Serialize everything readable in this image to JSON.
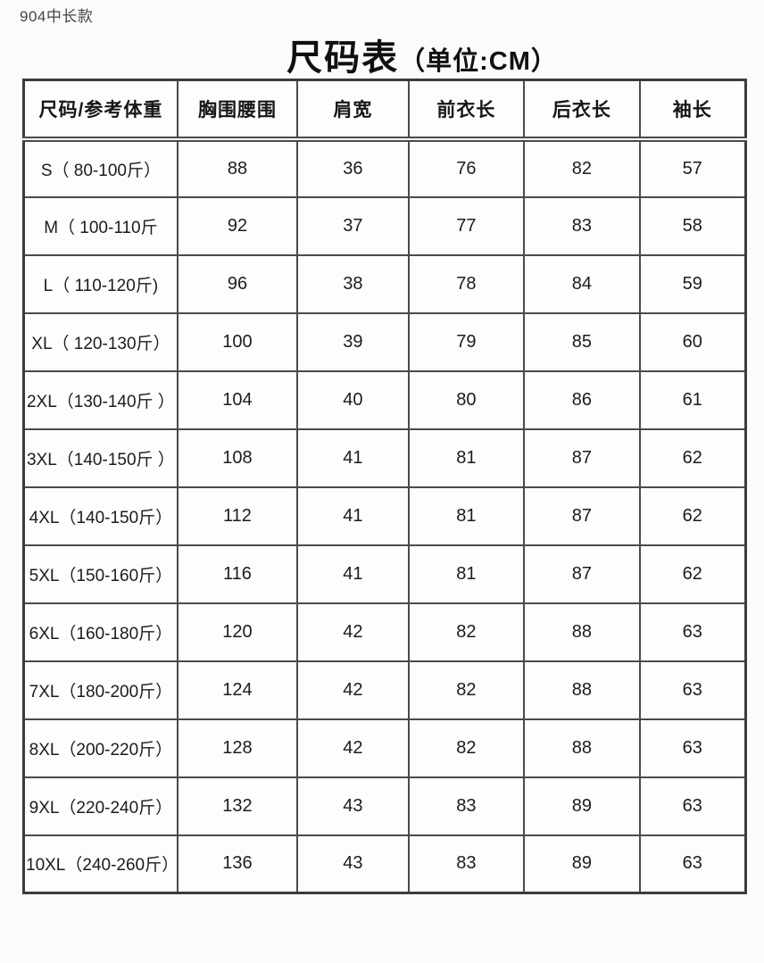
{
  "page": {
    "model_label": "904中长款",
    "title": "尺码表",
    "title_unit": "（单位:CM）"
  },
  "table": {
    "columns": [
      "尺码/参考体重",
      "胸围腰围",
      "肩宽",
      "前衣长",
      "后衣长",
      "袖长"
    ],
    "rows": [
      {
        "label": "S（ 80-100斤）",
        "values": [
          88,
          36,
          76,
          82,
          57
        ]
      },
      {
        "label": "M（ 100-110斤",
        "values": [
          92,
          37,
          77,
          83,
          58
        ]
      },
      {
        "label": "L（ 110-120斤)",
        "values": [
          96,
          38,
          78,
          84,
          59
        ]
      },
      {
        "label": "XL（ 120-130斤）",
        "values": [
          100,
          39,
          79,
          85,
          60
        ]
      },
      {
        "label": "2XL（130-140斤 ）",
        "values": [
          104,
          40,
          80,
          86,
          61
        ]
      },
      {
        "label": "3XL（140-150斤 ）",
        "values": [
          108,
          41,
          81,
          87,
          62
        ]
      },
      {
        "label": "4XL（140-150斤）",
        "values": [
          112,
          41,
          81,
          87,
          62
        ]
      },
      {
        "label": "5XL（150-160斤）",
        "values": [
          116,
          41,
          81,
          87,
          62
        ]
      },
      {
        "label": "6XL（160-180斤）",
        "values": [
          120,
          42,
          82,
          88,
          63
        ]
      },
      {
        "label": "7XL（180-200斤）",
        "values": [
          124,
          42,
          82,
          88,
          63
        ]
      },
      {
        "label": "8XL（200-220斤）",
        "values": [
          128,
          42,
          82,
          88,
          63
        ]
      },
      {
        "label": "9XL（220-240斤）",
        "values": [
          132,
          43,
          83,
          89,
          63
        ]
      },
      {
        "label": "10XL（240-260斤）",
        "values": [
          136,
          43,
          83,
          89,
          63
        ]
      }
    ]
  }
}
